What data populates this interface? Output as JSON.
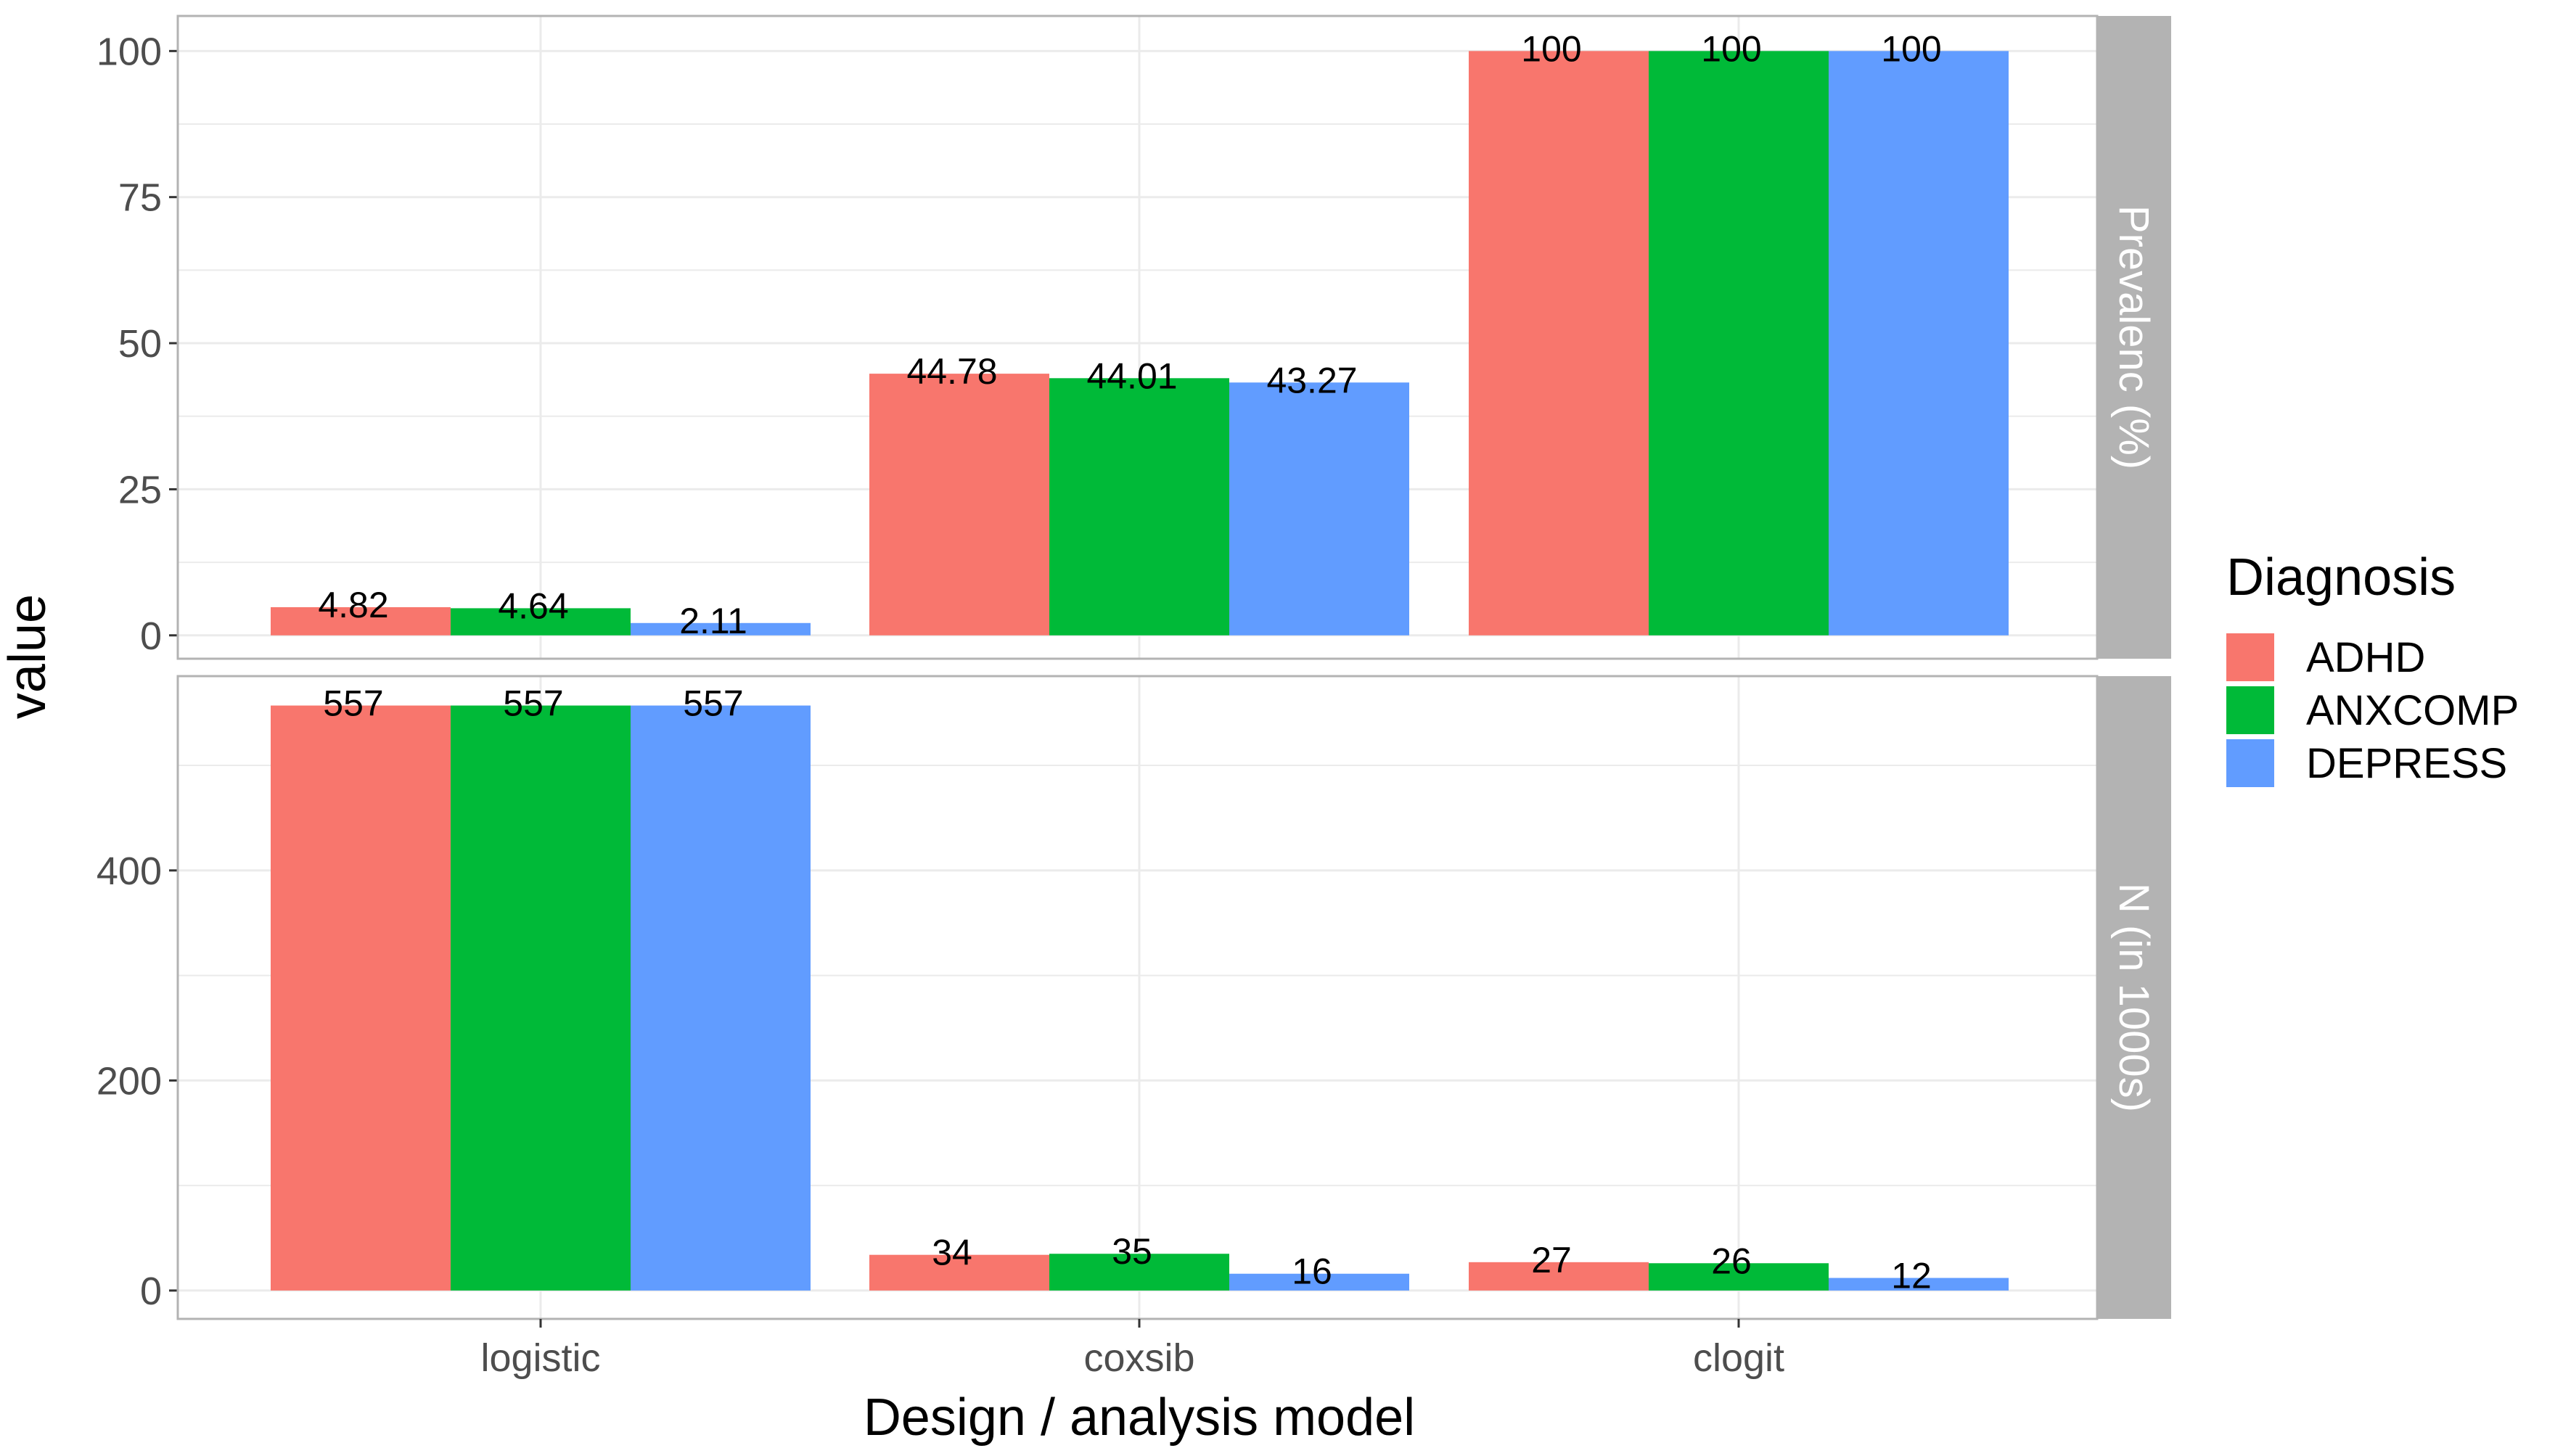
{
  "chart_data": {
    "type": "bar",
    "xlabel": "Design / analysis model",
    "ylabel": "value",
    "categories": [
      "logistic",
      "coxsib",
      "clogit"
    ],
    "legend": {
      "title": "Diagnosis",
      "placement": "right"
    },
    "series_colors": {
      "ADHD": "#F8766D",
      "ANXCOMP": "#00BA38",
      "DEPRESS": "#619CFF"
    },
    "grid": true,
    "panels": [
      {
        "strip": "Prevalenc (%)",
        "ylim": [
          -4,
          106
        ],
        "yticks": [
          0,
          25,
          50,
          75,
          100
        ],
        "series": [
          {
            "name": "ADHD",
            "values": [
              4.82,
              44.78,
              100
            ],
            "labels": [
              "4.82",
              "44.78",
              "100"
            ]
          },
          {
            "name": "ANXCOMP",
            "values": [
              4.64,
              44.01,
              100
            ],
            "labels": [
              "4.64",
              "44.01",
              "100"
            ]
          },
          {
            "name": "DEPRESS",
            "values": [
              2.11,
              43.27,
              100
            ],
            "labels": [
              "2.11",
              "43.27",
              "100"
            ]
          }
        ]
      },
      {
        "strip": "N (in 1000s)",
        "ylim": [
          -27,
          585
        ],
        "yticks": [
          0,
          200,
          400
        ],
        "series": [
          {
            "name": "ADHD",
            "values": [
              557,
              34,
              27
            ],
            "labels": [
              "557",
              "34",
              "27"
            ]
          },
          {
            "name": "ANXCOMP",
            "values": [
              557,
              35,
              26
            ],
            "labels": [
              "557",
              "35",
              "26"
            ]
          },
          {
            "name": "DEPRESS",
            "values": [
              557,
              16,
              12
            ],
            "labels": [
              "557",
              "16",
              "12"
            ]
          }
        ]
      }
    ]
  }
}
